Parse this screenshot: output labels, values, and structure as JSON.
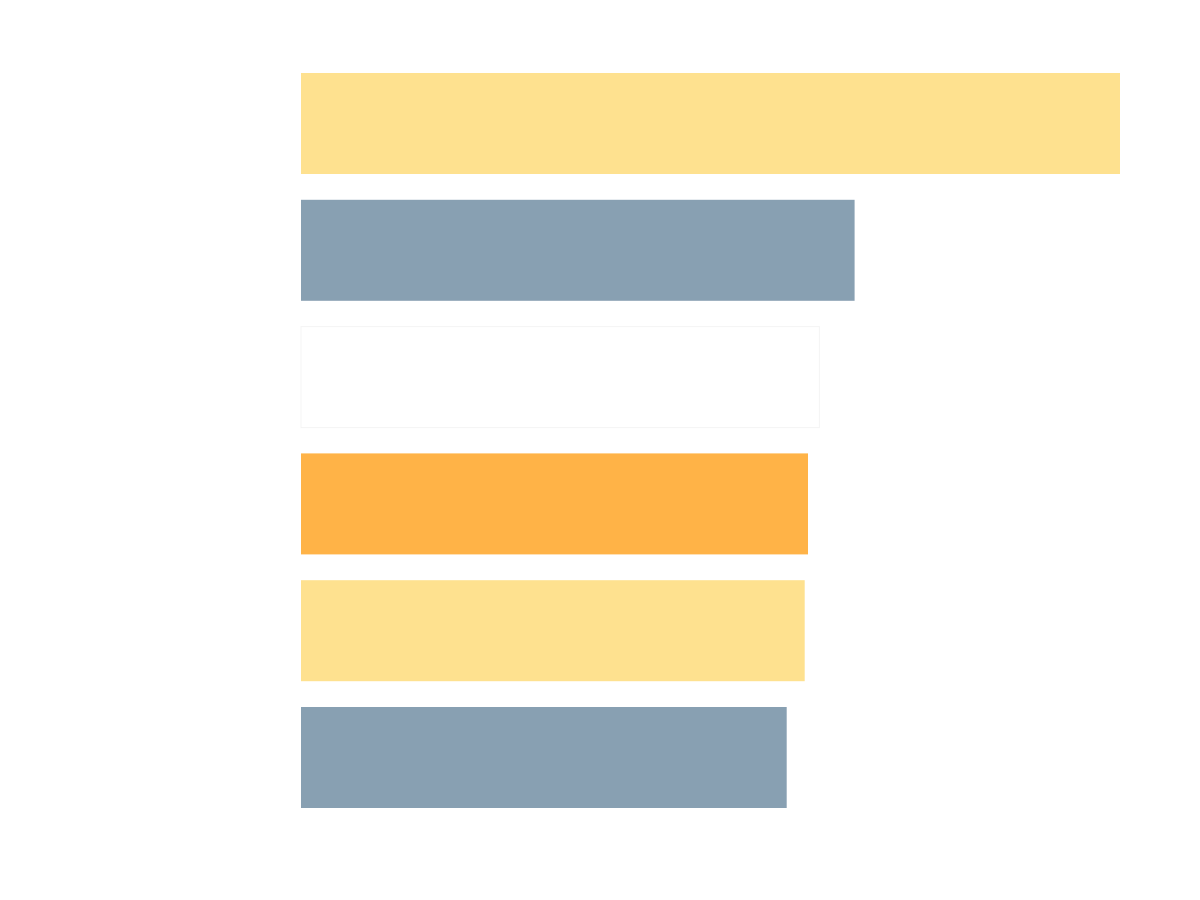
{
  "chart_data": {
    "type": "bar",
    "orientation": "horizontal",
    "title": "",
    "xlabel": "",
    "ylabel": "",
    "grid": false,
    "legend": "none",
    "categories": [
      "",
      "",
      "",
      "",
      "",
      ""
    ],
    "values": [
      100,
      67.6,
      63.3,
      61.9,
      61.5,
      59.3
    ],
    "xlim": [
      0,
      100
    ],
    "colors": [
      "#fee18f",
      "#88a0b2",
      "#ffffff",
      "#ffb347",
      "#fee18f",
      "#88a0b2"
    ],
    "outline": [
      "none",
      "none",
      "#f4f4f4",
      "none",
      "none",
      "none"
    ]
  }
}
